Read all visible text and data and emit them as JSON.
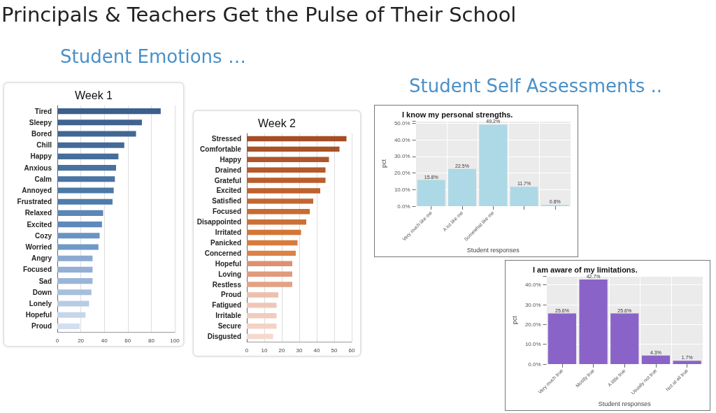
{
  "chart_data": [
    {
      "type": "other",
      "title": "Principals & Teachers Get the Pulse of Their School",
      "annotations": [
        "Student Emotions …",
        "Student Self Assessments .."
      ]
    },
    {
      "type": "bar",
      "orientation": "horizontal",
      "title": "Week 1",
      "categories": [
        "Tired",
        "Sleepy",
        "Bored",
        "Chill",
        "Happy",
        "Anxious",
        "Calm",
        "Annoyed",
        "Frustrated",
        "Relaxed",
        "Excited",
        "Cozy",
        "Worried",
        "Angry",
        "Focused",
        "Sad",
        "Down",
        "Lonely",
        "Hopeful",
        "Proud"
      ],
      "values": [
        88,
        72,
        67,
        57,
        52,
        50,
        49,
        48,
        47,
        39,
        38,
        36,
        35,
        30,
        30,
        30,
        29,
        27,
        24,
        19
      ],
      "colors": [
        "#3d5f8c",
        "#40638f",
        "#426793",
        "#446a97",
        "#466e9b",
        "#48719f",
        "#4a75a3",
        "#4c78a7",
        "#4f7cab",
        "#5a86b8",
        "#5e8abb",
        "#6a93c2",
        "#7199c6",
        "#8caad0",
        "#93b0d4",
        "#9ab5d7",
        "#a6bfdc",
        "#b7cbe3",
        "#c6d5ea",
        "#d4def0"
      ],
      "xlim": [
        0,
        100
      ],
      "xticks": [
        0,
        20,
        40,
        60,
        80,
        100
      ],
      "grid": "x"
    },
    {
      "type": "bar",
      "orientation": "horizontal",
      "title": "Week 2",
      "categories": [
        "Stressed",
        "Comfortable",
        "Happy",
        "Drained",
        "Grateful",
        "Excited",
        "Satisfied",
        "Focused",
        "Disappointed",
        "Irritated",
        "Panicked",
        "Concerned",
        "Hopeful",
        "Loving",
        "Restless",
        "Proud",
        "Fatigued",
        "Irritable",
        "Secure",
        "Disgusted"
      ],
      "values": [
        57,
        53,
        47,
        45,
        45,
        42,
        38,
        36,
        34,
        31,
        29,
        28,
        26,
        26,
        26,
        18,
        17,
        17,
        17,
        15
      ],
      "colors": [
        "#a34e25",
        "#a85227",
        "#ae5629",
        "#b35a2b",
        "#b85e2d",
        "#bd622f",
        "#c36731",
        "#c86b33",
        "#cd7035",
        "#d37537",
        "#d87b3c",
        "#dc8247",
        "#de9070",
        "#e09a7c",
        "#e2a286",
        "#edbfae",
        "#efc6b7",
        "#f1ccbe",
        "#f3d3c6",
        "#f5d9cf"
      ],
      "xlim": [
        0,
        60
      ],
      "xticks": [
        0,
        10,
        20,
        30,
        40,
        50,
        60
      ],
      "grid": "x"
    },
    {
      "type": "bar",
      "title": "I know my personal strengths.",
      "xlabel": "Student responses",
      "ylabel": "pct",
      "categories": [
        "Very much like me",
        "A lot like me",
        "Somewhat like me",
        null,
        null
      ],
      "values": [
        15.8,
        22.5,
        49.2,
        11.7,
        0.8
      ],
      "value_labels": [
        "15.8%",
        "22.5%",
        "49.2%",
        "11.7%",
        "0.8%"
      ],
      "color": "#add8e6",
      "ylim": [
        0,
        51.5
      ],
      "yticks": [
        {
          "value": 0,
          "label": "0.0%"
        },
        {
          "value": 10,
          "label": "10.0%"
        },
        {
          "value": 20,
          "label": "20.0%"
        },
        {
          "value": 30,
          "label": "30.0%"
        },
        {
          "value": 40,
          "label": "40.0%"
        },
        {
          "value": 50,
          "label": "50.0%"
        }
      ],
      "grid": true
    },
    {
      "type": "bar",
      "title": "I am aware of my limitations.",
      "xlabel": "Student responses",
      "ylabel": "pct",
      "categories": [
        "Very much true",
        "Mostly true",
        "A little true",
        "Usually not true",
        "Not at all true"
      ],
      "values": [
        25.6,
        42.7,
        25.6,
        4.3,
        1.7
      ],
      "value_labels": [
        "25.6%",
        "42.7%",
        "25.6%",
        "4.3%",
        "1.7%"
      ],
      "color": "#8a63c9",
      "ylim": [
        0,
        44.5
      ],
      "yticks": [
        {
          "value": 0,
          "label": "0.0%"
        },
        {
          "value": 10,
          "label": "10.0%"
        },
        {
          "value": 20,
          "label": "20.0%"
        },
        {
          "value": 30,
          "label": "30.0%"
        },
        {
          "value": 40,
          "label": "40.0%"
        }
      ],
      "grid": true
    }
  ]
}
